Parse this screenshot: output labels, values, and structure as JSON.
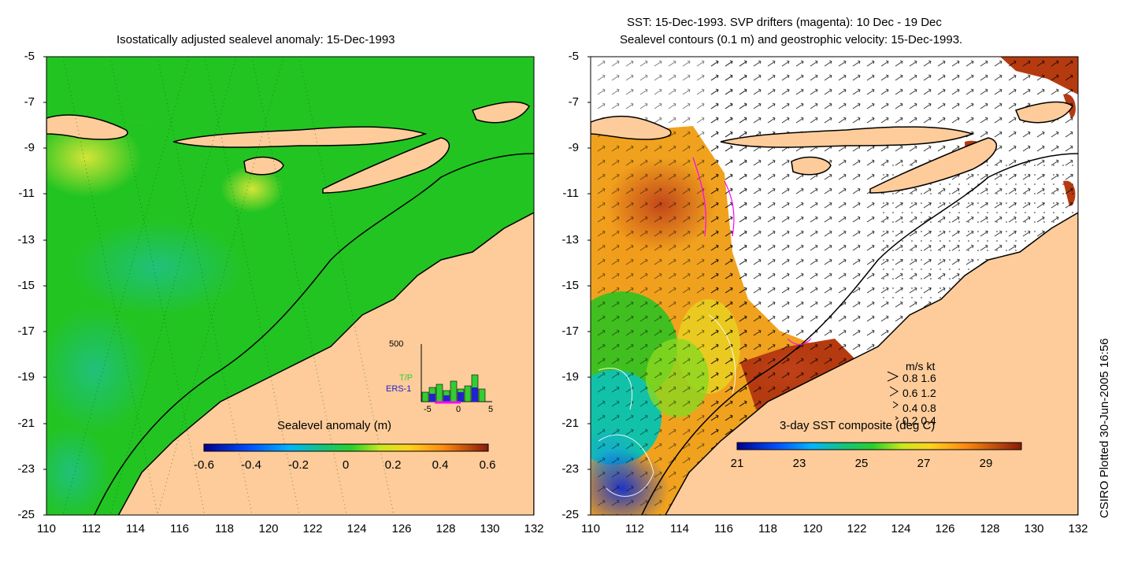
{
  "left_panel": {
    "title": "Isostatically adjusted sealevel anomaly: 15-Dec-1993",
    "colorbar_label": "Sealevel anomaly (m)",
    "colorbar_ticks": [
      "-0.6",
      "-0.4",
      "-0.2",
      "0",
      "0.2",
      "0.4",
      "0.6"
    ],
    "inset": {
      "ymax_label": "500",
      "series": [
        "T/P",
        "ERS-1"
      ],
      "x_ticks": [
        "-5",
        "0",
        "5"
      ],
      "tp_color": "#33cc33",
      "ers_color": "#2222cc"
    }
  },
  "right_panel": {
    "title_line1": "SST: 15-Dec-1993. SVP drifters (magenta): 10 Dec - 19 Dec",
    "title_line2": "Sealevel contours (0.1 m) and geostrophic velocity: 15-Dec-1993.",
    "colorbar_label": "3-day SST composite (deg C)",
    "colorbar_ticks": [
      "21",
      "23",
      "25",
      "27",
      "29"
    ],
    "speed_legend": {
      "header": "m/s  kt",
      "rows": [
        "0.8  1.6",
        "0.6  1.2",
        "0.4  0.8",
        "0.2  0.4"
      ]
    }
  },
  "axes": {
    "y_ticks": [
      "-5",
      "-7",
      "-9",
      "-11",
      "-13",
      "-15",
      "-17",
      "-19",
      "-21",
      "-23",
      "-25"
    ],
    "x_ticks": [
      "110",
      "112",
      "114",
      "116",
      "118",
      "120",
      "122",
      "124",
      "126",
      "128",
      "130",
      "132"
    ]
  },
  "credit": "CSIRO Plotted 30-Jun-2005 16:56",
  "colors": {
    "land": "#fdcc9a",
    "sea_base": "#22c422",
    "warm_sst": "#b53a10"
  }
}
